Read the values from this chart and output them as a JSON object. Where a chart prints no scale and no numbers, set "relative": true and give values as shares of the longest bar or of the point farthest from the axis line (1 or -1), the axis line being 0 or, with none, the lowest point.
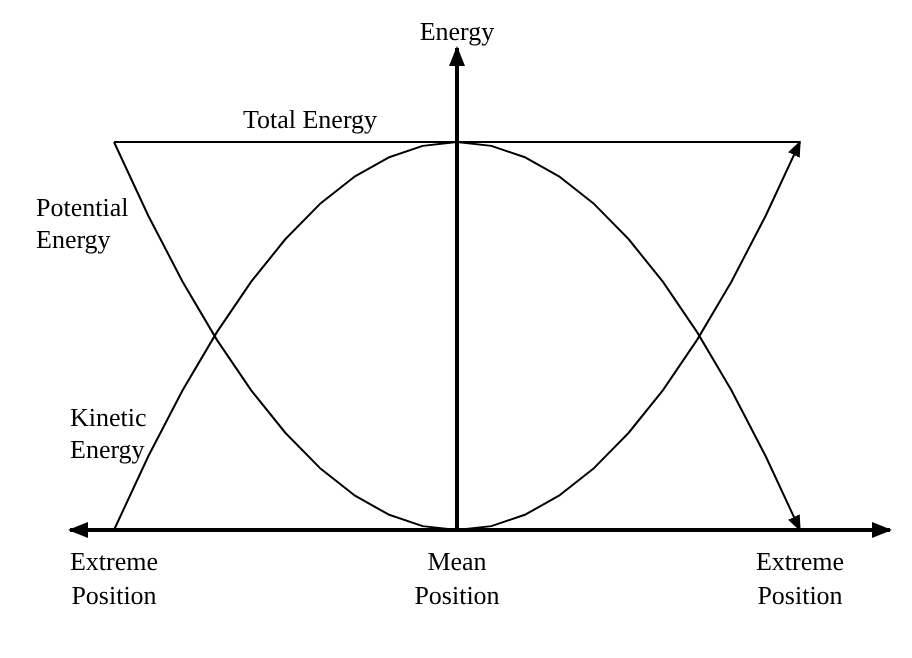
{
  "chart_data": {
    "type": "line",
    "relative": true,
    "ylabel": "Energy",
    "marker": "none",
    "line_style": "solid",
    "categories": [
      "Extreme Position",
      null,
      null,
      null,
      null,
      null,
      null,
      null,
      null,
      null,
      "Mean Position",
      null,
      null,
      null,
      null,
      null,
      null,
      null,
      null,
      null,
      "Extreme Position"
    ],
    "series": [
      {
        "name": "Potential Energy",
        "color": "#000000",
        "values": [
          1,
          0.81,
          0.64,
          0.49,
          0.36,
          0.25,
          0.16,
          0.09,
          0.04,
          0.01,
          0,
          0.01,
          0.04,
          0.09,
          0.16,
          0.25,
          0.36,
          0.49,
          0.64,
          0.81,
          1
        ]
      },
      {
        "name": "Kinetic Energy",
        "color": "#000000",
        "values": [
          0,
          0.19,
          0.36,
          0.51,
          0.64,
          0.75,
          0.84,
          0.91,
          0.96,
          0.99,
          1,
          0.99,
          0.96,
          0.91,
          0.84,
          0.75,
          0.64,
          0.51,
          0.36,
          0.19,
          0
        ]
      }
    ],
    "ref_lines": [
      {
        "axis": "y",
        "value": 1,
        "label": "Total Energy",
        "color": "#000000"
      }
    ]
  }
}
